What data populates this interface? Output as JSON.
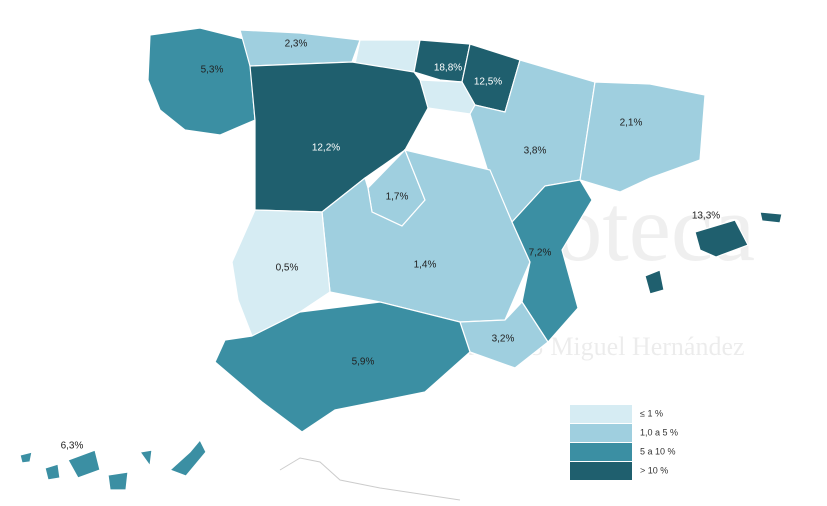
{
  "regions": [
    {
      "label": "5,3%",
      "color": "#3b8fa3"
    },
    {
      "label": "2,3%",
      "color": "#9fcfdf"
    },
    {
      "label": null,
      "color": "#d6ecf3"
    },
    {
      "label": "18,8%",
      "color": "#1f5f6e"
    },
    {
      "label": "12,5%",
      "color": "#1f5f6e"
    },
    {
      "label": null,
      "color": "#d6ecf3"
    },
    {
      "label": "12,2%",
      "color": "#1f5f6e"
    },
    {
      "label": "3,8%",
      "color": "#9fcfdf"
    },
    {
      "label": "2,1%",
      "color": "#9fcfdf"
    },
    {
      "label": "1,7%",
      "color": "#9fcfdf"
    },
    {
      "label": "1,4%",
      "color": "#9fcfdf"
    },
    {
      "label": "0,5%",
      "color": "#d6ecf3"
    },
    {
      "label": "7,2%",
      "color": "#3b8fa3"
    },
    {
      "label": "3,2%",
      "color": "#9fcfdf"
    },
    {
      "label": "5,9%",
      "color": "#3b8fa3"
    },
    {
      "label": "13,3%",
      "color": "#1f5f6e"
    },
    {
      "label": "6,3%",
      "color": "#3b8fa3"
    }
  ],
  "legend": [
    {
      "label": "≤ 1 %",
      "color": "#d6ecf3"
    },
    {
      "label": "1,0 a 5 %",
      "color": "#9fcfdf"
    },
    {
      "label": "5 a 10 %",
      "color": "#3b8fa3"
    },
    {
      "label": "> 10 %",
      "color": "#1f5f6e"
    }
  ],
  "watermark": {
    "title": "Biblioteca",
    "subtitle": "UNIVERSITAS Miguel Hernández"
  }
}
